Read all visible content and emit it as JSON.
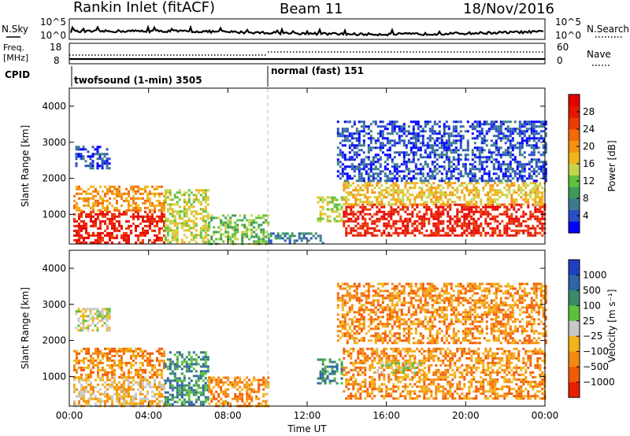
{
  "header": {
    "station": "Rankin Inlet (fitACF)",
    "beam": "Beam 11",
    "date": "18/Nov/2016"
  },
  "top_panels": {
    "nsky_label": "N.Sky",
    "nsearch_label": "N.Search",
    "nsky_ticks": [
      "10^5",
      "10^0"
    ],
    "nsearch_ticks": [
      "10^5",
      "10^0"
    ],
    "freq_label": "Freq.",
    "freq_unit": "[MHz]",
    "freq_ticks": [
      "18",
      "8"
    ],
    "nave_label": "Nave",
    "nave_ticks": [
      "60",
      "0"
    ],
    "cpid_label": "CPID",
    "cpid_segments": [
      {
        "label": "twofsound (1-min) 3505",
        "start_hour": 0
      },
      {
        "label": "normal (fast) 151",
        "start_hour": 10
      }
    ]
  },
  "chart_data": [
    {
      "type": "heatmap",
      "name": "power",
      "ylabel": "Slant Range [km]",
      "ylim": [
        180,
        4500
      ],
      "y_ticks": [
        1000,
        2000,
        3000,
        4000
      ],
      "y_tick_labels": [
        "1000",
        "2000",
        "3000",
        "4000"
      ],
      "x_ticks": [
        0,
        4,
        8,
        12,
        16,
        20,
        24
      ],
      "x_tick_labels": [
        "00:00",
        "04:00",
        "08:00",
        "12:00",
        "16:00",
        "20:00",
        "00:00"
      ],
      "xlim": [
        0,
        24
      ],
      "colorbar": {
        "label": "Power [dB]",
        "tick_labels": [
          "4",
          "8",
          "12",
          "16",
          "20",
          "24",
          "28"
        ],
        "colors": [
          "#0000ff",
          "#2a4ec8",
          "#3d7a8e",
          "#3c9a5a",
          "#5fc23a",
          "#c7d44a",
          "#f1b61a",
          "#f49112",
          "#f36a09",
          "#ee3a03",
          "#e61700",
          "#e60000"
        ]
      },
      "regions": [
        {
          "t": [
            0.2,
            4.8
          ],
          "r": [
            200,
            1100
          ],
          "c": 10
        },
        {
          "t": [
            0.2,
            4.8
          ],
          "r": [
            1100,
            1800
          ],
          "c": 7
        },
        {
          "t": [
            0.3,
            2.0
          ],
          "r": [
            2300,
            2900
          ],
          "c": 1
        },
        {
          "t": [
            4.8,
            7.0
          ],
          "r": [
            200,
            1700
          ],
          "c": 5
        },
        {
          "t": [
            7.0,
            10.0
          ],
          "r": [
            200,
            1000
          ],
          "c": 4
        },
        {
          "t": [
            10.0,
            12.8
          ],
          "r": [
            200,
            500
          ],
          "c": 2
        },
        {
          "t": [
            12.5,
            13.8
          ],
          "r": [
            800,
            1500
          ],
          "c": 5
        },
        {
          "t": [
            13.8,
            24.0
          ],
          "r": [
            400,
            1300
          ],
          "c": 10
        },
        {
          "t": [
            13.8,
            24.0
          ],
          "r": [
            1300,
            1900
          ],
          "c": 6
        },
        {
          "t": [
            13.5,
            24.0
          ],
          "r": [
            1900,
            3600
          ],
          "c": 1
        }
      ]
    },
    {
      "type": "heatmap",
      "name": "velocity",
      "ylabel": "Slant Range [km]",
      "ylim": [
        180,
        4500
      ],
      "y_ticks": [
        1000,
        2000,
        3000,
        4000
      ],
      "y_tick_labels": [
        "1000",
        "2000",
        "3000",
        "4000"
      ],
      "x_ticks": [
        0,
        4,
        8,
        12,
        16,
        20,
        24
      ],
      "x_tick_labels": [
        "00:00",
        "04:00",
        "08:00",
        "12:00",
        "16:00",
        "20:00",
        "00:00"
      ],
      "xlim": [
        0,
        24
      ],
      "xlabel": "Time UT",
      "colorbar": {
        "label": "Velocity [m s⁻¹]",
        "tick_labels": [
          "1000",
          "500",
          "100",
          "25",
          "−25",
          "−100",
          "−500",
          "−1000"
        ],
        "colors": [
          "#1f3fbf",
          "#2f64a8",
          "#3b8a6a",
          "#5cc139",
          "#c8c8c8",
          "#f2b416",
          "#f48a10",
          "#f25a06",
          "#e62000"
        ]
      },
      "regions": [
        {
          "t": [
            0.2,
            4.8
          ],
          "r": [
            200,
            1000
          ],
          "c": 5
        },
        {
          "t": [
            0.2,
            4.8
          ],
          "r": [
            1000,
            1800
          ],
          "c": 6
        },
        {
          "t": [
            0.3,
            2.0
          ],
          "r": [
            2300,
            2900
          ],
          "c": 4
        },
        {
          "t": [
            4.8,
            7.0
          ],
          "r": [
            200,
            1700
          ],
          "c": 2
        },
        {
          "t": [
            7.0,
            10.0
          ],
          "r": [
            200,
            1000
          ],
          "c": 6
        },
        {
          "t": [
            12.5,
            13.8
          ],
          "r": [
            800,
            1500
          ],
          "c": 2
        },
        {
          "t": [
            13.8,
            24.0
          ],
          "r": [
            400,
            1800
          ],
          "c": 6
        },
        {
          "t": [
            15.5,
            18.0
          ],
          "r": [
            1100,
            1400
          ],
          "c": 4
        },
        {
          "t": [
            13.5,
            24.0
          ],
          "r": [
            1900,
            3600
          ],
          "c": 6
        }
      ]
    }
  ]
}
